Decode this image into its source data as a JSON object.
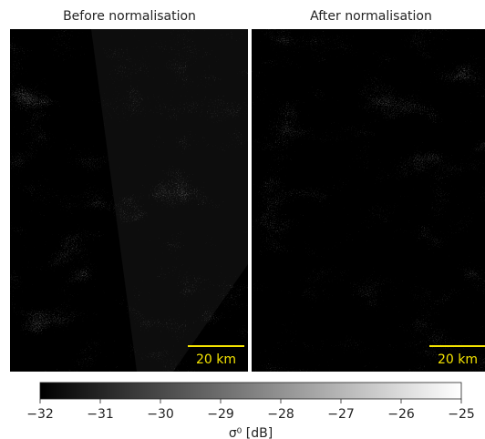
{
  "chart_data": {
    "type": "image",
    "panels": [
      {
        "title": "Before normalisation",
        "scalebar": "20 km"
      },
      {
        "title": "After normalisation",
        "scalebar": "20 km"
      }
    ],
    "colorbar": {
      "label": "σ⁰ [dB]",
      "colormap": "gray",
      "lim": [
        -32,
        -25
      ],
      "ticks": [
        {
          "value": -32,
          "label": "−32"
        },
        {
          "value": -31,
          "label": "−31"
        },
        {
          "value": -30,
          "label": "−30"
        },
        {
          "value": -29,
          "label": "−29"
        },
        {
          "value": -28,
          "label": "−28"
        },
        {
          "value": -27,
          "label": "−27"
        },
        {
          "value": -26,
          "label": "−26"
        },
        {
          "value": -25,
          "label": "−25"
        }
      ]
    }
  }
}
